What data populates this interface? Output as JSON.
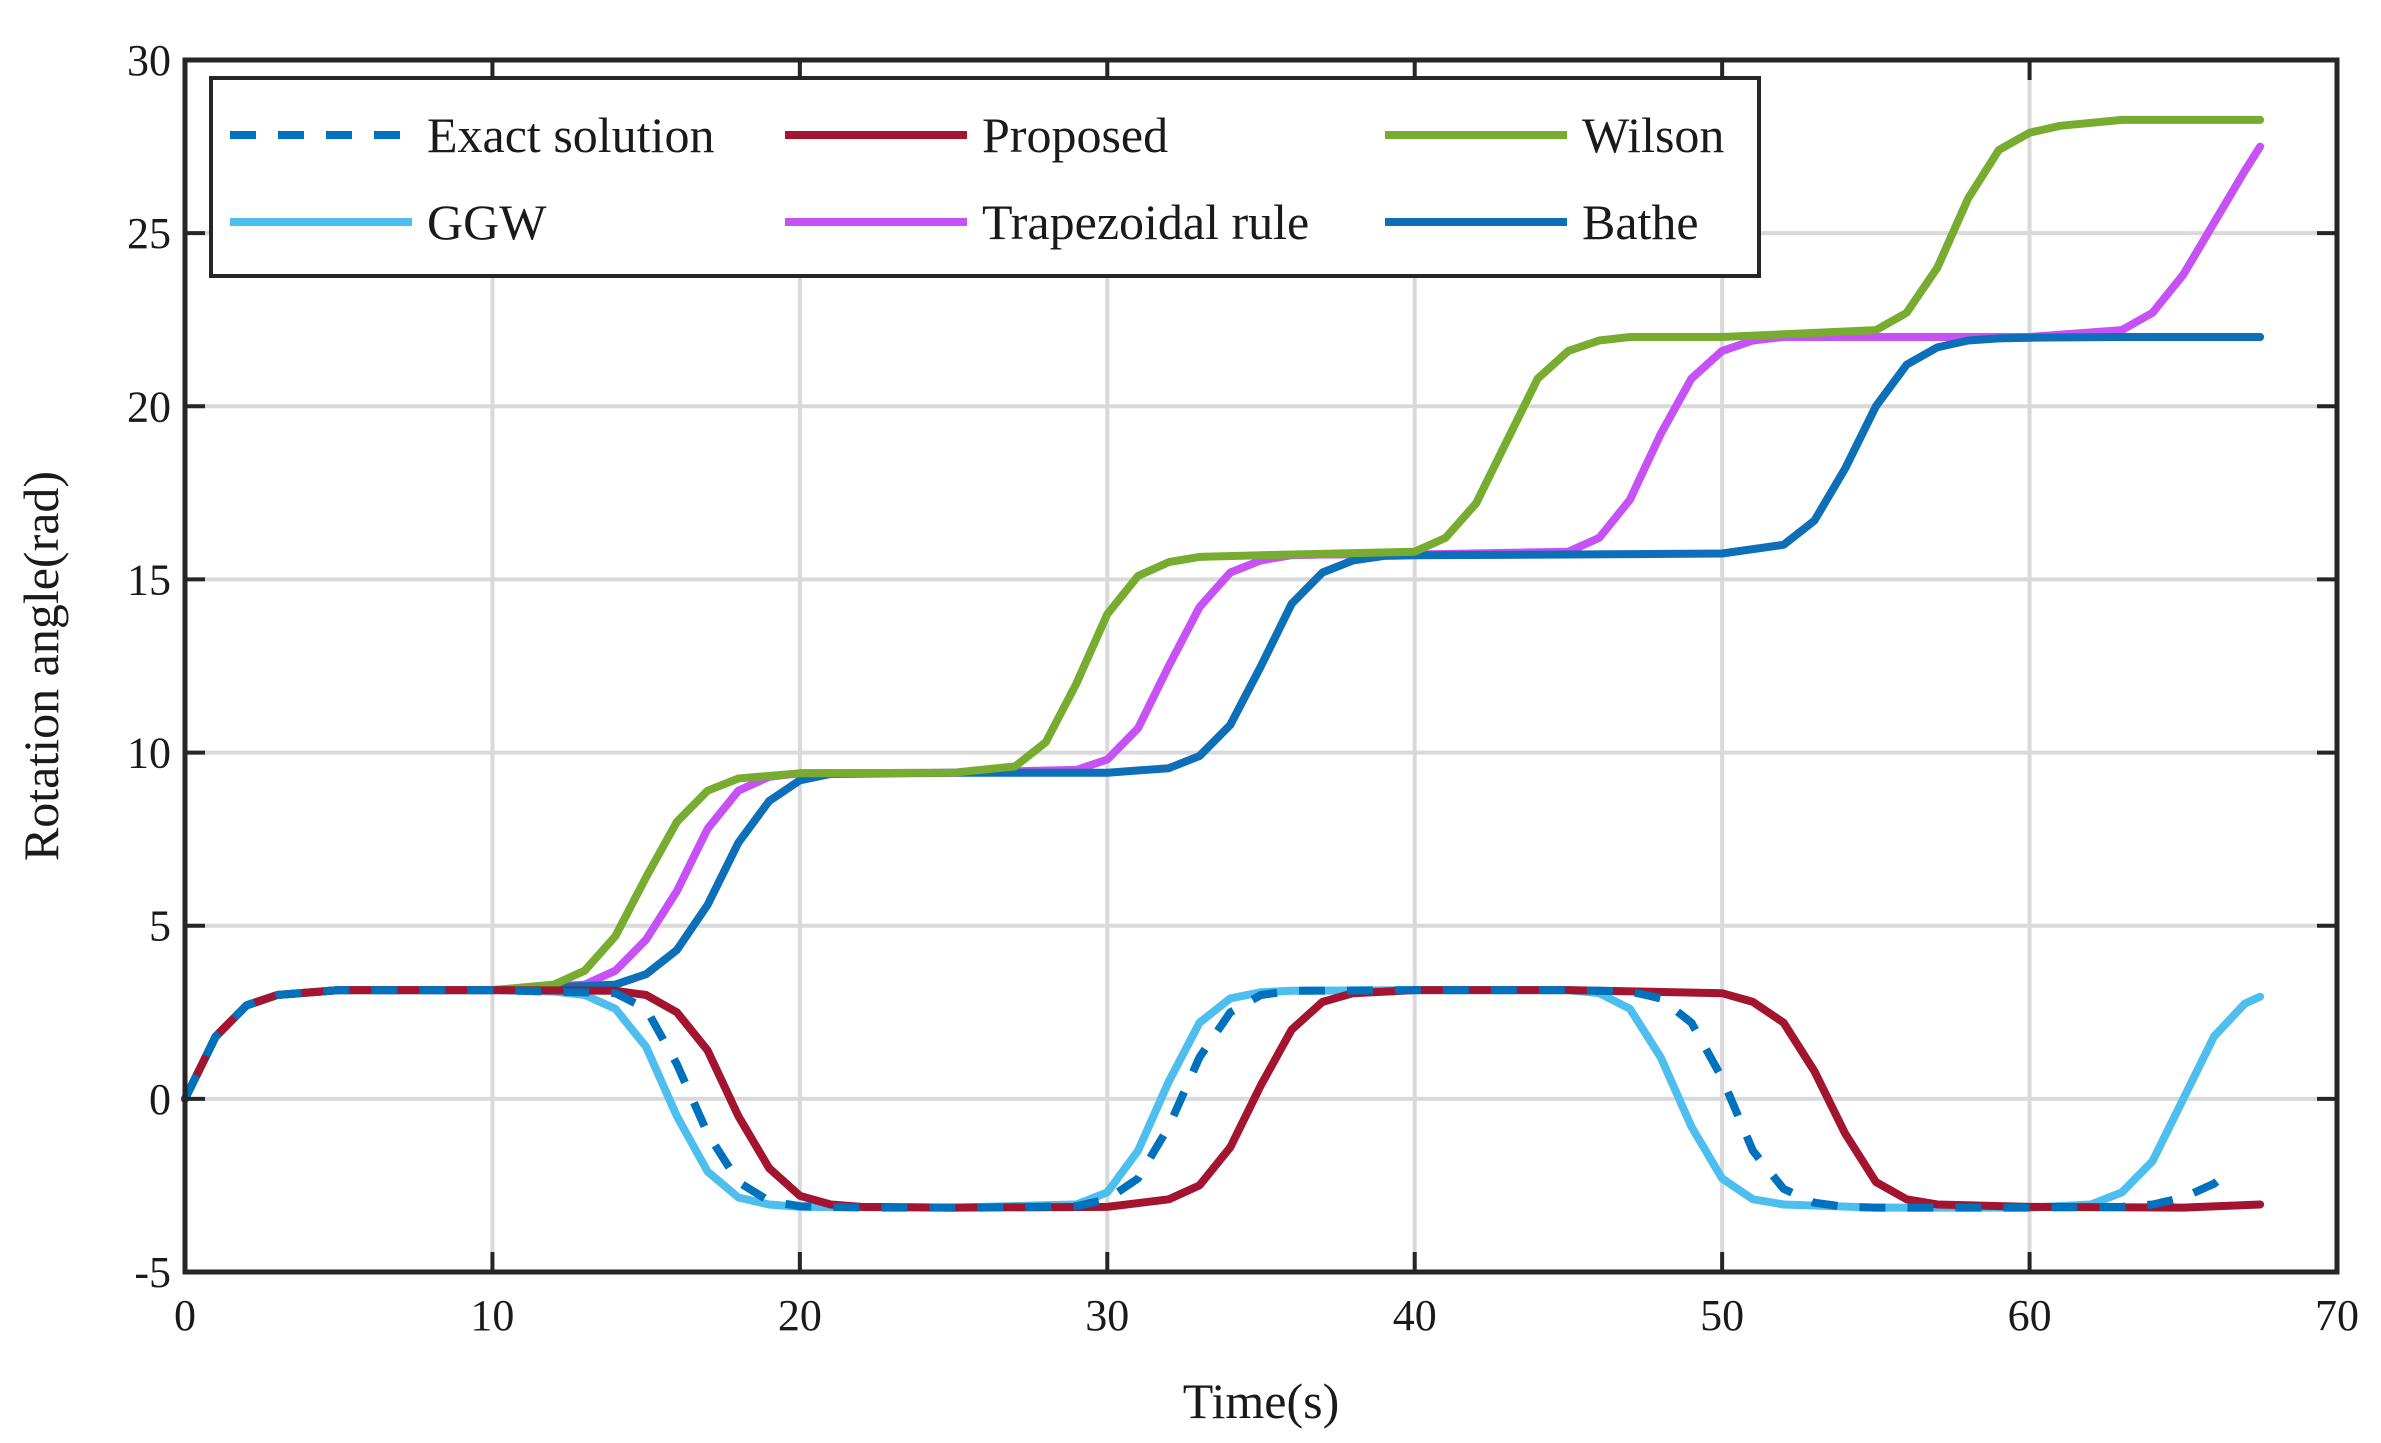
{
  "chart_data": {
    "type": "line",
    "title": "",
    "xlabel": "Time(s)",
    "ylabel": "Rotation angle(rad)",
    "xlim": [
      0,
      70
    ],
    "ylim": [
      -5,
      30
    ],
    "xticks": [
      0,
      10,
      20,
      30,
      40,
      50,
      60,
      70
    ],
    "yticks": [
      -5,
      0,
      5,
      10,
      15,
      20,
      25,
      30
    ],
    "xtick_labels": [
      "0",
      "10",
      "20",
      "30",
      "40",
      "50",
      "60",
      "70"
    ],
    "ytick_labels": [
      "-5",
      "0",
      "5",
      "10",
      "15",
      "20",
      "25",
      "30"
    ],
    "grid": true,
    "legend_position": "top-left",
    "series": [
      {
        "name": "Exact solution",
        "color": "#0072bd",
        "dashed": true,
        "x": [
          0,
          1,
          2,
          3,
          5,
          10,
          14,
          15,
          16,
          17,
          18,
          19,
          20,
          22,
          26,
          29,
          30,
          31,
          32,
          33,
          34,
          35,
          36,
          40,
          45,
          47,
          48,
          49,
          50,
          51,
          52,
          53,
          54,
          55,
          60,
          63,
          64,
          65,
          66,
          66.5
        ],
        "values": [
          0,
          1.8,
          2.7,
          3.0,
          3.14,
          3.14,
          3.05,
          2.6,
          1.0,
          -1.0,
          -2.4,
          -2.95,
          -3.1,
          -3.14,
          -3.14,
          -3.1,
          -2.9,
          -2.3,
          -0.8,
          1.2,
          2.5,
          3.0,
          3.12,
          3.14,
          3.14,
          3.1,
          2.9,
          2.2,
          0.6,
          -1.5,
          -2.6,
          -3.0,
          -3.12,
          -3.14,
          -3.14,
          -3.12,
          -3.05,
          -2.85,
          -2.45,
          -2.1
        ]
      },
      {
        "name": "Proposed",
        "color": "#a2142f",
        "dashed": false,
        "x": [
          0,
          1,
          2,
          3,
          5,
          10,
          14,
          15,
          16,
          17,
          18,
          19,
          20,
          21,
          22,
          25,
          30,
          32,
          33,
          34,
          35,
          36,
          37,
          38,
          40,
          45,
          50,
          51,
          52,
          53,
          54,
          55,
          56,
          57,
          60,
          65,
          67.5
        ],
        "values": [
          0,
          1.8,
          2.7,
          3.0,
          3.14,
          3.14,
          3.12,
          3.0,
          2.5,
          1.4,
          -0.5,
          -2.0,
          -2.8,
          -3.05,
          -3.12,
          -3.14,
          -3.12,
          -2.9,
          -2.5,
          -1.4,
          0.4,
          2.0,
          2.8,
          3.05,
          3.14,
          3.14,
          3.05,
          2.8,
          2.2,
          0.8,
          -1.0,
          -2.4,
          -2.9,
          -3.05,
          -3.12,
          -3.14,
          -3.05
        ]
      },
      {
        "name": "Wilson",
        "color": "#77ac30",
        "dashed": false,
        "x": [
          0,
          1,
          2,
          3,
          5,
          10,
          12,
          13,
          14,
          15,
          16,
          17,
          18,
          20,
          25,
          27,
          28,
          29,
          30,
          31,
          32,
          33,
          35,
          40,
          41,
          42,
          43,
          44,
          45,
          46,
          47,
          50,
          55,
          56,
          57,
          58,
          59,
          60,
          61,
          63,
          67.5
        ],
        "values": [
          0,
          1.8,
          2.7,
          3.0,
          3.14,
          3.14,
          3.3,
          3.7,
          4.7,
          6.4,
          8.0,
          8.9,
          9.25,
          9.4,
          9.42,
          9.6,
          10.3,
          12.0,
          14.0,
          15.1,
          15.5,
          15.65,
          15.7,
          15.8,
          16.2,
          17.2,
          19.0,
          20.8,
          21.6,
          21.9,
          22.0,
          22.0,
          22.2,
          22.7,
          24.0,
          26.0,
          27.4,
          27.9,
          28.1,
          28.27,
          28.27
        ]
      },
      {
        "name": "GGW",
        "color": "#4dbeee",
        "dashed": false,
        "x": [
          0,
          1,
          2,
          3,
          5,
          10,
          12,
          13,
          14,
          15,
          16,
          17,
          18,
          19,
          20,
          25,
          29,
          30,
          31,
          32,
          33,
          34,
          35,
          36,
          40,
          45,
          46,
          47,
          48,
          49,
          50,
          51,
          52,
          55,
          60,
          62,
          63,
          64,
          65,
          66,
          67,
          67.5
        ],
        "values": [
          0,
          1.8,
          2.7,
          3.0,
          3.14,
          3.14,
          3.1,
          3.0,
          2.6,
          1.5,
          -0.5,
          -2.1,
          -2.85,
          -3.05,
          -3.12,
          -3.14,
          -3.05,
          -2.7,
          -1.5,
          0.5,
          2.2,
          2.9,
          3.08,
          3.12,
          3.14,
          3.14,
          3.05,
          2.6,
          1.2,
          -0.8,
          -2.3,
          -2.9,
          -3.05,
          -3.14,
          -3.14,
          -3.05,
          -2.7,
          -1.8,
          0.0,
          1.8,
          2.75,
          2.95
        ]
      },
      {
        "name": "Trapezoidal rule",
        "color": "#c651f5",
        "dashed": false,
        "x": [
          0,
          1,
          2,
          3,
          5,
          10,
          13,
          14,
          15,
          16,
          17,
          18,
          19,
          20,
          25,
          29,
          30,
          31,
          32,
          33,
          34,
          35,
          36,
          37,
          40,
          45,
          46,
          47,
          48,
          49,
          50,
          51,
          52,
          55,
          60,
          63,
          64,
          65,
          66,
          67,
          67.5
        ],
        "values": [
          0,
          1.8,
          2.7,
          3.0,
          3.14,
          3.14,
          3.3,
          3.7,
          4.6,
          6.0,
          7.8,
          8.9,
          9.3,
          9.4,
          9.42,
          9.5,
          9.8,
          10.7,
          12.5,
          14.2,
          15.2,
          15.55,
          15.7,
          15.72,
          15.72,
          15.8,
          16.2,
          17.3,
          19.2,
          20.8,
          21.6,
          21.9,
          22.0,
          22.0,
          22.0,
          22.2,
          22.7,
          23.8,
          25.3,
          26.8,
          27.5
        ]
      },
      {
        "name": "Bathe",
        "color": "#0e6fb9",
        "dashed": false,
        "x": [
          0,
          1,
          2,
          3,
          5,
          10,
          14,
          15,
          16,
          17,
          18,
          19,
          20,
          21,
          25,
          30,
          32,
          33,
          34,
          35,
          36,
          37,
          38,
          39,
          40,
          45,
          50,
          52,
          53,
          54,
          55,
          56,
          57,
          58,
          59,
          60,
          63,
          67.5
        ],
        "values": [
          0,
          1.8,
          2.7,
          3.0,
          3.14,
          3.14,
          3.3,
          3.6,
          4.3,
          5.6,
          7.4,
          8.6,
          9.2,
          9.38,
          9.42,
          9.42,
          9.55,
          9.9,
          10.8,
          12.5,
          14.3,
          15.2,
          15.55,
          15.68,
          15.7,
          15.72,
          15.75,
          16.0,
          16.7,
          18.2,
          20.0,
          21.2,
          21.7,
          21.9,
          21.96,
          21.98,
          22.0,
          22.0
        ]
      }
    ]
  }
}
